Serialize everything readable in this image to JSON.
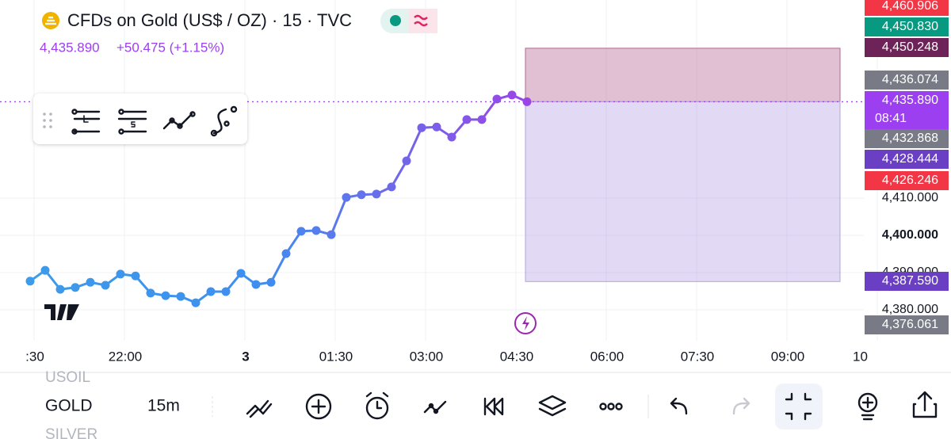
{
  "header": {
    "title": "CFDs on Gold (US$ / OZ) · 15 · TVC",
    "price": "4,435.890",
    "change": "+50.475 (+1.15%)"
  },
  "chart_data": {
    "type": "line",
    "categories": [
      ":30",
      null,
      null,
      null,
      null,
      null,
      "22:00",
      null,
      null,
      null,
      null,
      null,
      null,
      null,
      "3",
      null,
      null,
      null,
      null,
      null,
      "01:30",
      null,
      null,
      null,
      null,
      null,
      "03:00",
      null,
      null,
      null,
      null,
      null,
      "04:30",
      null,
      null,
      null,
      null,
      null,
      "06:00",
      null,
      null,
      null,
      null,
      null,
      "07:30",
      null,
      null,
      null,
      null,
      null,
      "09:00",
      null,
      null,
      null,
      null,
      null,
      "10"
    ],
    "series": [
      {
        "gradient": [
          "#3d9be9",
          "#9b45e6"
        ],
        "values": [
          4387.7,
          4390.6,
          4385.5,
          4386.0,
          4387.4,
          4386.6,
          4389.6,
          4389.1,
          4384.5,
          4383.8,
          4383.6,
          4381.9,
          4384.9,
          4384.9,
          4389.8,
          4386.8,
          4387.4,
          4395.1,
          4401.1,
          4401.3,
          4400.2,
          4410.2,
          4410.9,
          4411.1,
          4413.0,
          4420.0,
          4428.9,
          4429.1,
          4426.4,
          4431.1,
          4431.1,
          4436.6,
          4437.7,
          4435.89,
          null,
          null,
          null,
          null,
          null,
          null,
          null,
          null,
          null,
          null,
          null,
          null,
          null,
          null,
          null,
          null,
          null,
          null,
          null,
          null,
          null,
          null,
          null
        ]
      }
    ],
    "ylim": [
      4371.7,
      4463.2
    ],
    "yticks": [
      {
        "value": 4380,
        "label": "4,380.000"
      },
      {
        "value": 4390,
        "label": "4,390.000"
      },
      {
        "value": 4400,
        "label": "4,400.000"
      },
      {
        "value": 4410,
        "label": "4,410.000"
      }
    ],
    "grid": true,
    "position": {
      "upper": 4450.248,
      "entry": 4435.89,
      "lower": 4387.59
    },
    "price_tags": [
      {
        "label": "4,460.906",
        "color": "#f23645"
      },
      {
        "label": "4,450.830",
        "color": "#089981"
      },
      {
        "label": "4,450.248",
        "color": "#6e2358"
      },
      {
        "label": "4,436.074",
        "color": "#787b86"
      },
      {
        "label": "4,435.890",
        "color": "#9c3ff0",
        "countdown": "08:41"
      },
      {
        "label": "4,432.868",
        "color": "#787b86"
      },
      {
        "label": "4,428.444",
        "color": "#6a3fc4"
      },
      {
        "label": "4,426.246",
        "color": "#f23645"
      },
      {
        "label": "4,387.590",
        "color": "#6a3fc4"
      },
      {
        "label": "4,376.061",
        "color": "#787b86"
      }
    ]
  },
  "toolbar": {
    "symbols": [
      "USOIL",
      "GOLD",
      "SILVER"
    ],
    "interval": "15m"
  }
}
